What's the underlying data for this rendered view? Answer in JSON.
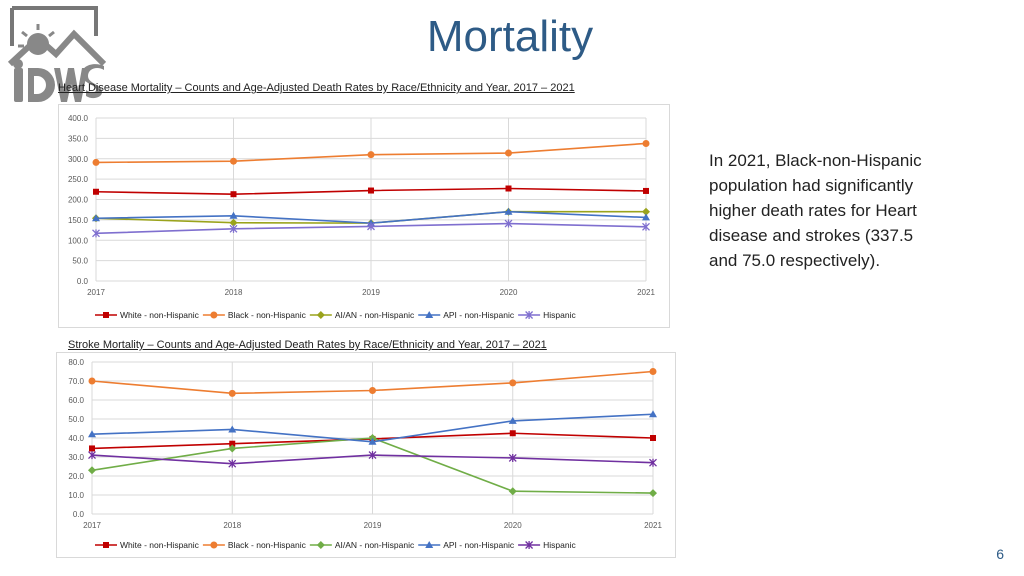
{
  "slide": {
    "title": "Mortality",
    "side_note": "In 2021, Black-non-Hispanic population had significantly higher death rates for Heart disease and strokes (337.5 and 75.0 respectively).",
    "page_number": "6"
  },
  "chart_data": [
    {
      "type": "line",
      "title": "Heart Disease Mortality – Counts and Age-Adjusted Death Rates by Race/Ethnicity and Year, 2017 – 2021",
      "categories": [
        "2017",
        "2018",
        "2019",
        "2020",
        "2021"
      ],
      "ylim": [
        0,
        400
      ],
      "yticks": [
        "0.0",
        "50.0",
        "100.0",
        "150.0",
        "200.0",
        "250.0",
        "300.0",
        "350.0",
        "400.0"
      ],
      "grid": true,
      "legend": "bottom",
      "series": [
        {
          "name": "White - non-Hispanic",
          "color": "#c00000",
          "marker": "square",
          "values": [
            219,
            213,
            222,
            227,
            221
          ]
        },
        {
          "name": "Black - non-Hispanic",
          "color": "#ed7d31",
          "marker": "circle",
          "values": [
            291,
            294,
            310,
            314,
            337.5
          ]
        },
        {
          "name": "AI/AN - non-Hispanic",
          "color": "#9aa31c",
          "marker": "diamond",
          "values": [
            154,
            143,
            142,
            170,
            170
          ]
        },
        {
          "name": "API - non-Hispanic",
          "color": "#4472c4",
          "marker": "triangle",
          "values": [
            154,
            160,
            142,
            170,
            156
          ]
        },
        {
          "name": "Hispanic",
          "color": "#7f6fcf",
          "marker": "x",
          "values": [
            117,
            128,
            134,
            141,
            133
          ]
        }
      ]
    },
    {
      "type": "line",
      "title": "Stroke Mortality – Counts and Age-Adjusted Death Rates by Race/Ethnicity and Year, 2017 – 2021",
      "categories": [
        "2017",
        "2018",
        "2019",
        "2020",
        "2021"
      ],
      "ylim": [
        0,
        80
      ],
      "yticks": [
        "0.0",
        "10.0",
        "20.0",
        "30.0",
        "40.0",
        "50.0",
        "60.0",
        "70.0",
        "80.0"
      ],
      "grid": true,
      "legend": "bottom",
      "series": [
        {
          "name": "White - non-Hispanic",
          "color": "#c00000",
          "marker": "square",
          "values": [
            34.5,
            37,
            39.5,
            42.5,
            40
          ]
        },
        {
          "name": "Black - non-Hispanic",
          "color": "#ed7d31",
          "marker": "circle",
          "values": [
            70,
            63.5,
            65,
            69,
            75
          ]
        },
        {
          "name": "AI/AN - non-Hispanic",
          "color": "#70ad47",
          "marker": "diamond",
          "values": [
            23,
            34.5,
            40,
            12,
            11
          ]
        },
        {
          "name": "API - non-Hispanic",
          "color": "#4472c4",
          "marker": "triangle",
          "values": [
            42,
            44.5,
            38,
            49,
            52.5
          ]
        },
        {
          "name": "Hispanic",
          "color": "#7030a0",
          "marker": "x",
          "values": [
            31,
            26.5,
            31,
            29.5,
            27
          ]
        }
      ]
    }
  ]
}
